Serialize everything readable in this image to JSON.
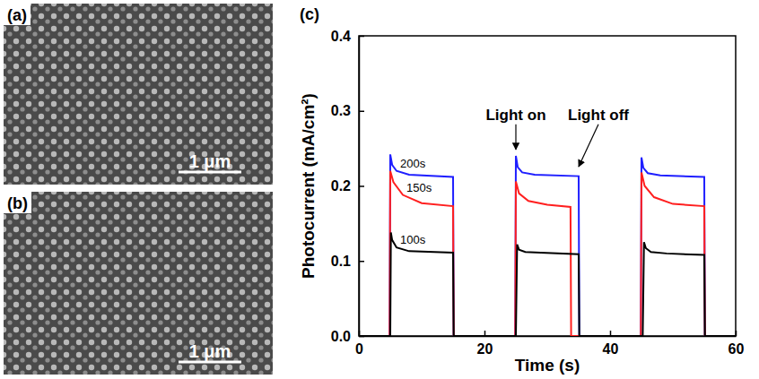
{
  "panels": [
    {
      "label": "(a)",
      "scale_bar": "1 μm"
    },
    {
      "label": "(b)",
      "scale_bar": "1 μm"
    },
    {
      "label": "(c)"
    }
  ],
  "chart_data": {
    "type": "line",
    "x_label": "Time (s)",
    "y_label": "Photocurrent (mA/cm²)",
    "xlim": [
      0,
      60
    ],
    "xticks": [
      0,
      20,
      40,
      60
    ],
    "ylim": [
      0,
      0.4
    ],
    "yticks": [
      {
        "value": 0,
        "label": "0.0"
      },
      0.1,
      0.2,
      0.3,
      0.4
    ],
    "series": [
      {
        "name": "200s",
        "color": "#1f1fff",
        "x": [
          0,
          4.9,
          5.0,
          5.3,
          6,
          8,
          15,
          15.1,
          24.9,
          25.0,
          25.3,
          26,
          28,
          35,
          35.1,
          44.9,
          45.0,
          45.3,
          46,
          48,
          55,
          55.1,
          60
        ],
        "values": [
          0,
          0,
          0.242,
          0.228,
          0.22,
          0.215,
          0.212,
          0,
          0,
          0.24,
          0.225,
          0.218,
          0.215,
          0.213,
          0,
          0,
          0.238,
          0.224,
          0.217,
          0.214,
          0.212,
          0,
          0
        ]
      },
      {
        "name": "150s",
        "color": "#ff1f1f",
        "x": [
          0,
          4.9,
          5.0,
          5.5,
          7,
          10,
          15,
          15.1,
          24.9,
          25.0,
          25.5,
          27,
          30,
          33.7,
          33.8,
          44.9,
          45.0,
          45.5,
          47,
          50,
          55,
          55.1,
          60
        ],
        "values": [
          0,
          0,
          0.22,
          0.205,
          0.188,
          0.177,
          0.173,
          0,
          0,
          0.206,
          0.19,
          0.18,
          0.175,
          0.172,
          0,
          0,
          0.218,
          0.2,
          0.185,
          0.176,
          0.173,
          0,
          0
        ]
      },
      {
        "name": "100s",
        "color": "#000000",
        "x": [
          0,
          5.0,
          5.1,
          5.3,
          6,
          8,
          15,
          15.1,
          25.0,
          25.2,
          25.5,
          26.5,
          29,
          35,
          35.1,
          45.2,
          45.4,
          45.7,
          46.5,
          49,
          55,
          55.1,
          60
        ],
        "values": [
          0,
          0,
          0.138,
          0.128,
          0.118,
          0.113,
          0.111,
          0,
          0,
          0.122,
          0.115,
          0.112,
          0.111,
          0.109,
          0,
          0,
          0.125,
          0.117,
          0.112,
          0.11,
          0.108,
          0,
          0
        ]
      }
    ],
    "annotations": [
      {
        "text": "Light on",
        "x": 25,
        "y": 0.245
      },
      {
        "text": "Light off",
        "x": 35,
        "y": 0.222
      }
    ]
  }
}
